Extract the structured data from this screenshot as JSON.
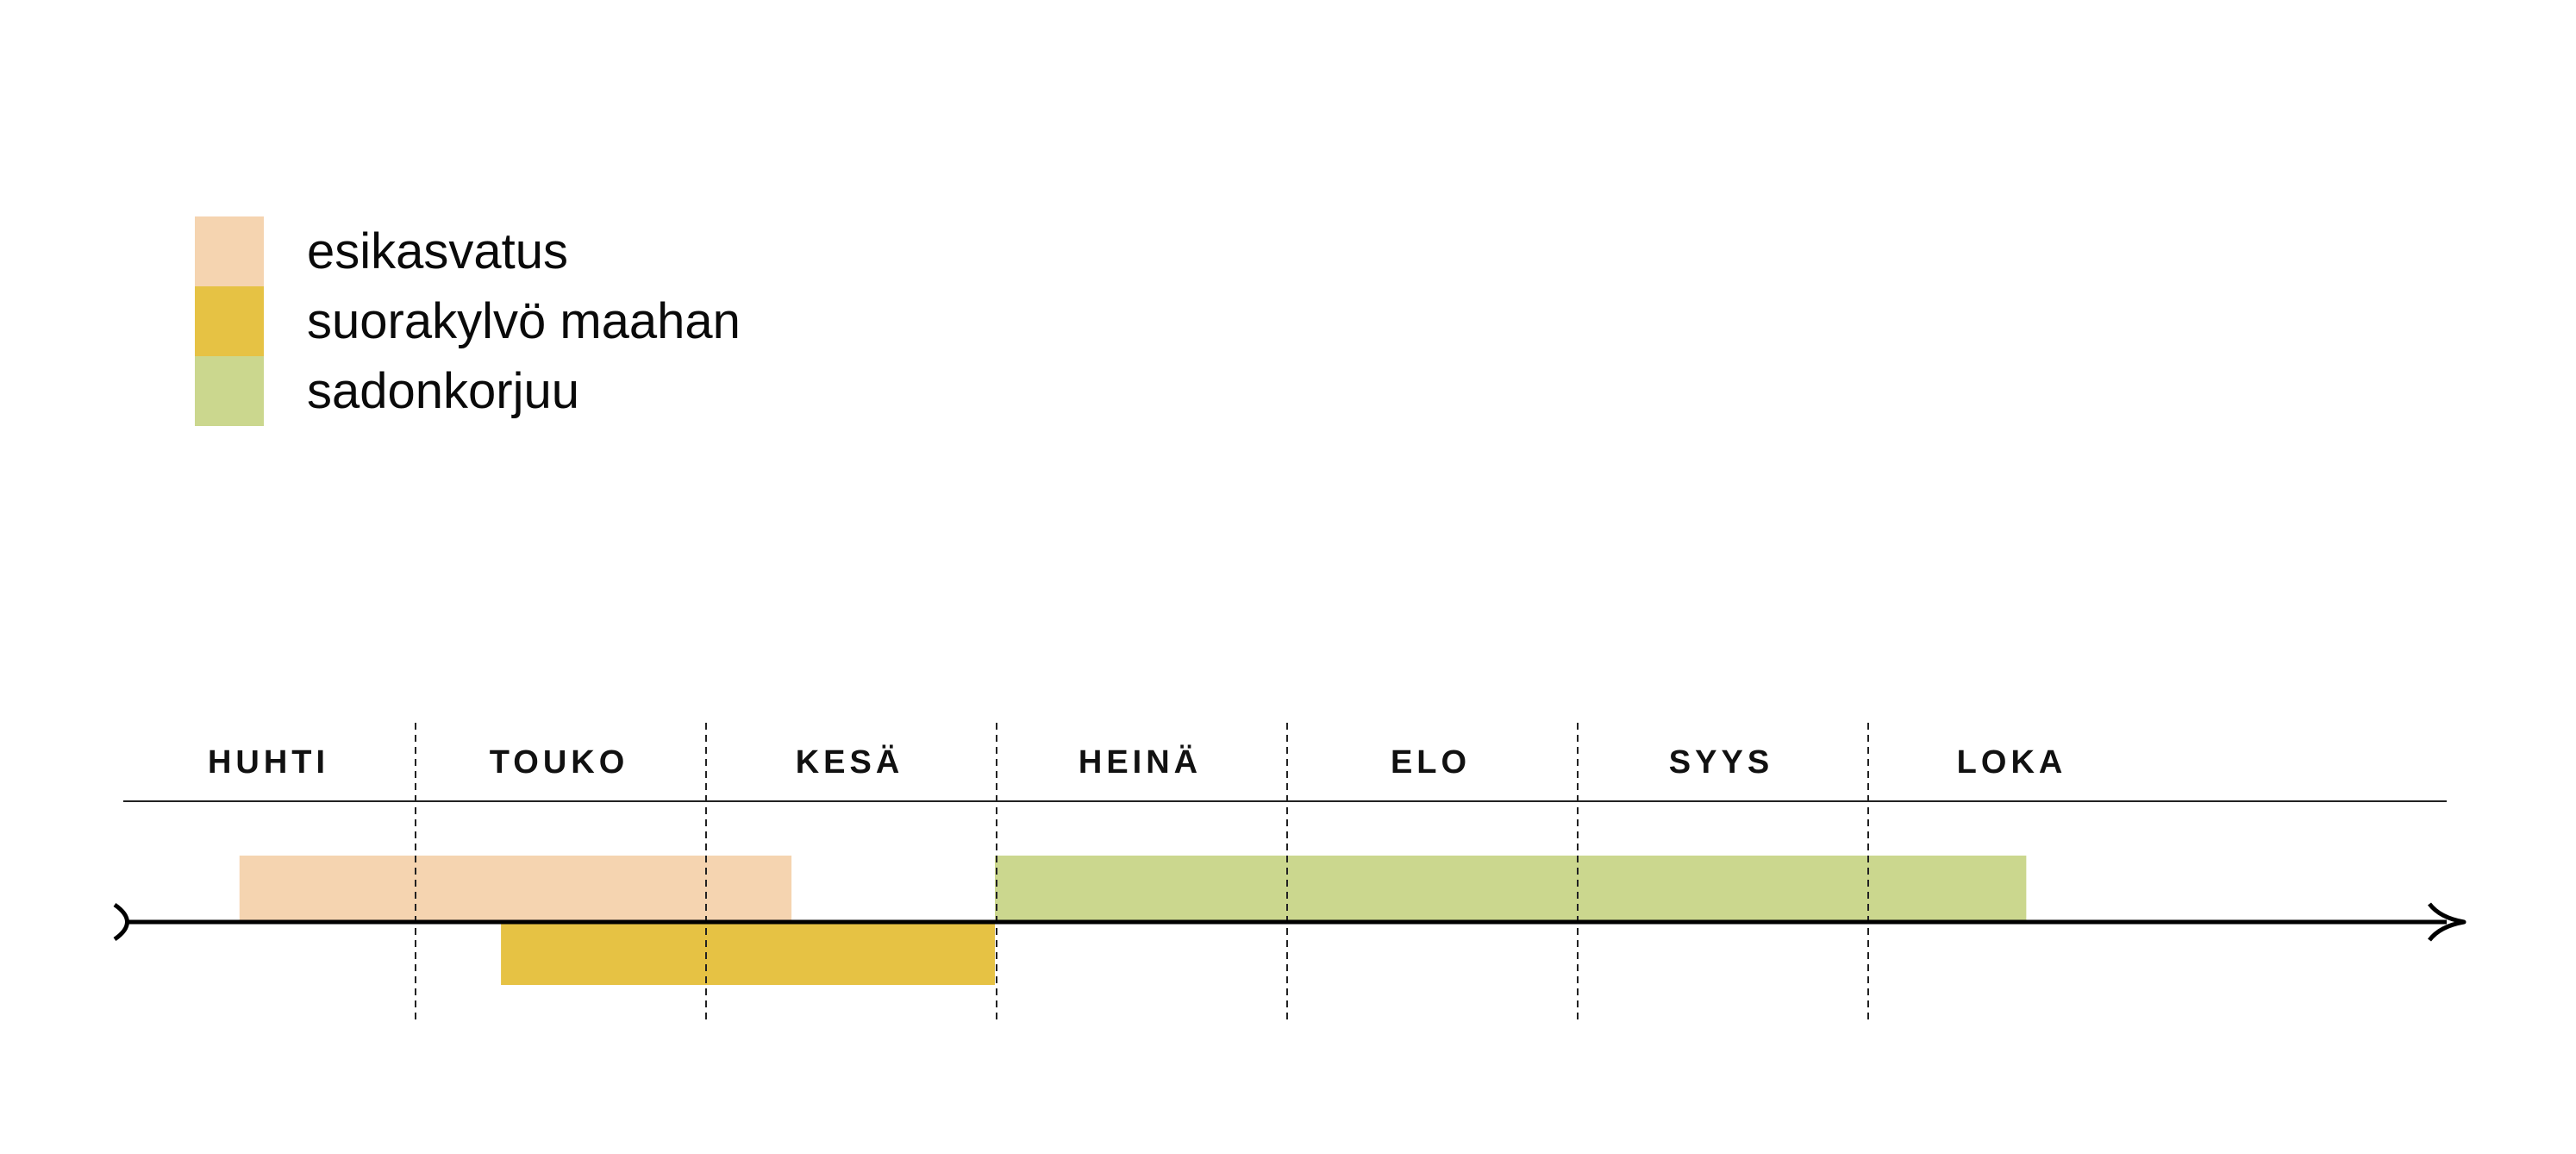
{
  "chart_data": {
    "type": "bar",
    "months": [
      "HUHTI",
      "TOUKO",
      "KESÄ",
      "HEINÄ",
      "ELO",
      "SYYS",
      "LOKA"
    ],
    "series": [
      {
        "name": "esikasvatus",
        "color": "#f5d4b0",
        "start_month": 0.4,
        "end_month": 2.3,
        "lane": "upper"
      },
      {
        "name": "suorakylvö maahan",
        "color": "#e6c244",
        "start_month": 1.3,
        "end_month": 3.0,
        "lane": "lower"
      },
      {
        "name": "sadonkorjuu",
        "color": "#cbd78e",
        "start_month": 3.0,
        "end_month": 6.55,
        "lane": "upper"
      }
    ]
  }
}
